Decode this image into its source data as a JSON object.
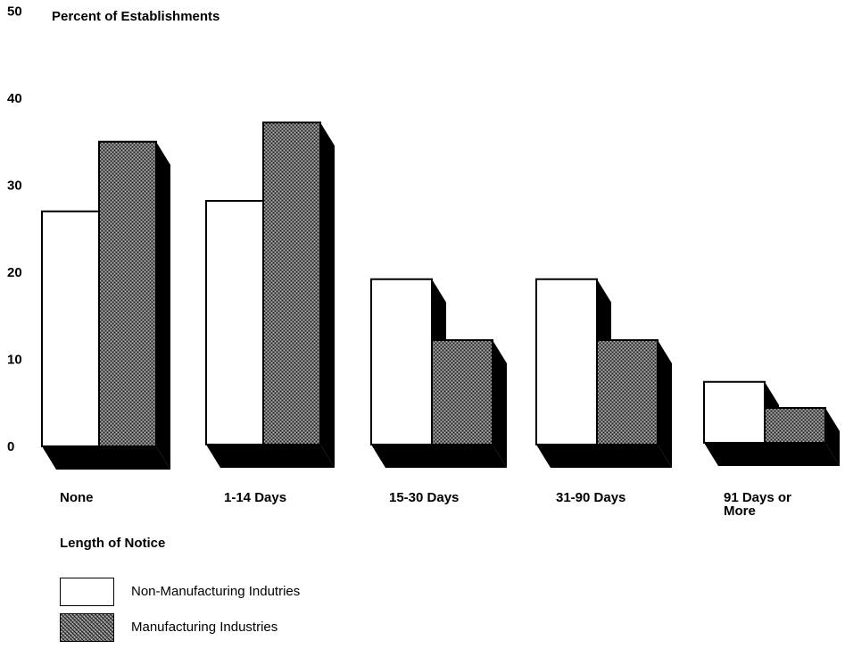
{
  "chart_data": {
    "type": "bar",
    "ylabel": "Percent of Establishments",
    "xlabel": "Length of Notice",
    "ylim": [
      0,
      50
    ],
    "yticks": [
      0,
      10,
      20,
      30,
      40,
      50
    ],
    "categories": [
      "None",
      "1-14 Days",
      "15-30 Days",
      "31-90 Days",
      "91 Days or More"
    ],
    "series": [
      {
        "name": "Non-Manufacturing Indutries",
        "values": [
          27,
          28,
          19,
          19,
          7
        ]
      },
      {
        "name": "Manufacturing Industries",
        "values": [
          35,
          37,
          12,
          12,
          4
        ]
      }
    ]
  },
  "labels": {
    "ylabel": "Percent of Establishments",
    "xlabel": "Length of Notice",
    "legend_nonmfg": "Non-Manufacturing Indutries",
    "legend_mfg": "Manufacturing Industries"
  }
}
